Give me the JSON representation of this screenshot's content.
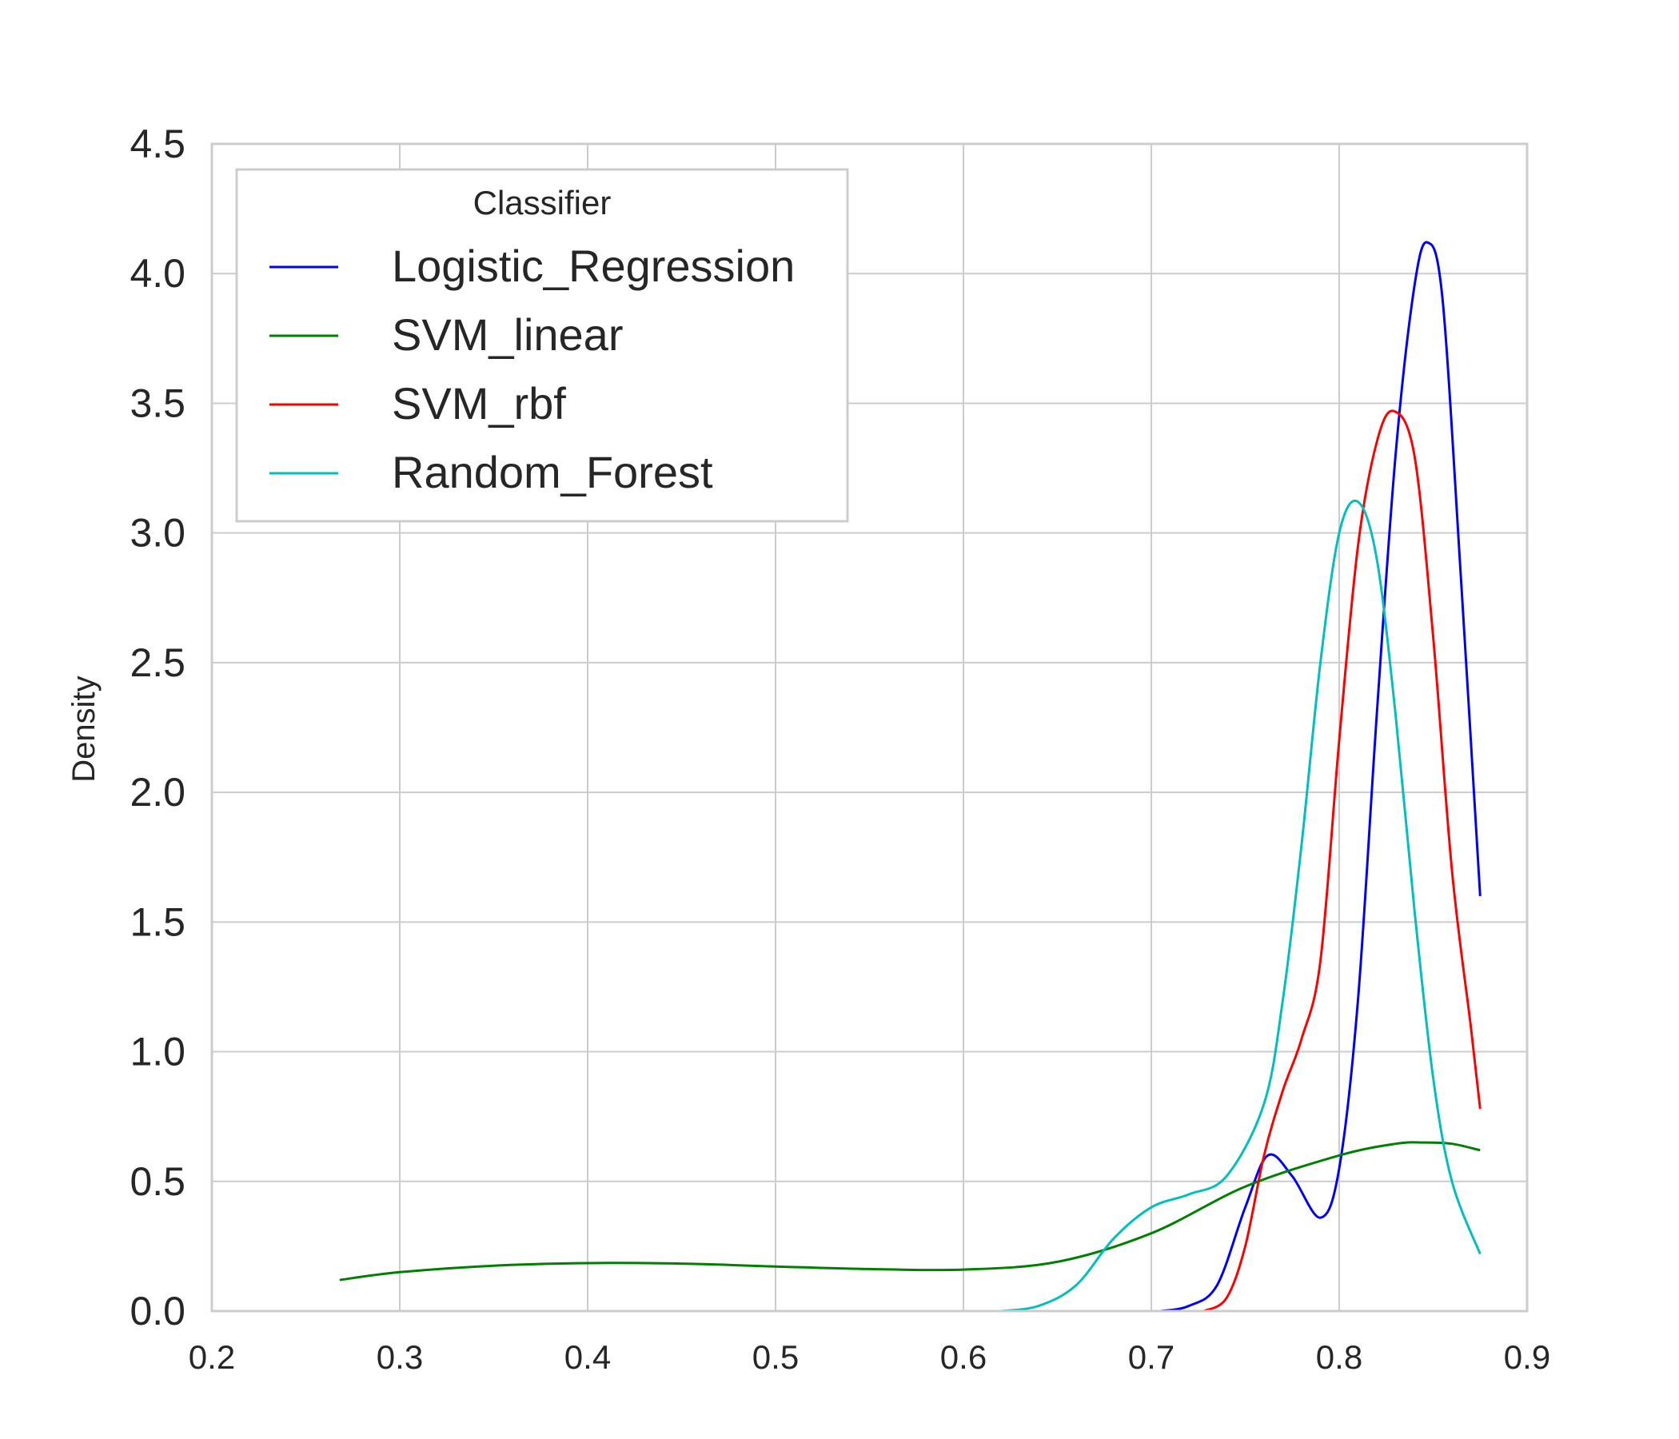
{
  "chart_data": {
    "type": "line",
    "title": "",
    "xlabel": "",
    "ylabel": "Density",
    "xlim": [
      0.2,
      0.9
    ],
    "ylim": [
      0.0,
      4.5
    ],
    "x_ticks": [
      "0.2",
      "0.3",
      "0.4",
      "0.5",
      "0.6",
      "0.7",
      "0.8",
      "0.9"
    ],
    "y_ticks": [
      "0.0",
      "0.5",
      "1.0",
      "1.5",
      "2.0",
      "2.5",
      "3.0",
      "3.5",
      "4.0",
      "4.5"
    ],
    "grid": true,
    "legend": {
      "title": "Classifier",
      "position": "top-left"
    },
    "series": [
      {
        "name": "Logistic_Regression",
        "color": "#0000ff",
        "points": [
          [
            0.705,
            0.0
          ],
          [
            0.72,
            0.02
          ],
          [
            0.735,
            0.1
          ],
          [
            0.75,
            0.4
          ],
          [
            0.762,
            0.6
          ],
          [
            0.775,
            0.52
          ],
          [
            0.79,
            0.36
          ],
          [
            0.8,
            0.55
          ],
          [
            0.81,
            1.2
          ],
          [
            0.82,
            2.3
          ],
          [
            0.83,
            3.3
          ],
          [
            0.84,
            3.95
          ],
          [
            0.847,
            4.12
          ],
          [
            0.855,
            3.9
          ],
          [
            0.865,
            2.8
          ],
          [
            0.875,
            1.6
          ]
        ]
      },
      {
        "name": "SVM_linear",
        "color": "#008000",
        "points": [
          [
            0.268,
            0.12
          ],
          [
            0.3,
            0.15
          ],
          [
            0.35,
            0.175
          ],
          [
            0.4,
            0.185
          ],
          [
            0.45,
            0.183
          ],
          [
            0.5,
            0.172
          ],
          [
            0.55,
            0.162
          ],
          [
            0.6,
            0.16
          ],
          [
            0.65,
            0.19
          ],
          [
            0.7,
            0.3
          ],
          [
            0.75,
            0.48
          ],
          [
            0.8,
            0.6
          ],
          [
            0.83,
            0.645
          ],
          [
            0.845,
            0.65
          ],
          [
            0.86,
            0.645
          ],
          [
            0.875,
            0.62
          ]
        ]
      },
      {
        "name": "SVM_rbf",
        "color": "#ff0000",
        "points": [
          [
            0.728,
            0.0
          ],
          [
            0.74,
            0.05
          ],
          [
            0.75,
            0.25
          ],
          [
            0.76,
            0.6
          ],
          [
            0.77,
            0.85
          ],
          [
            0.78,
            1.05
          ],
          [
            0.79,
            1.35
          ],
          [
            0.8,
            2.2
          ],
          [
            0.81,
            2.95
          ],
          [
            0.82,
            3.35
          ],
          [
            0.829,
            3.47
          ],
          [
            0.84,
            3.3
          ],
          [
            0.85,
            2.6
          ],
          [
            0.86,
            1.7
          ],
          [
            0.87,
            1.1
          ],
          [
            0.875,
            0.78
          ]
        ]
      },
      {
        "name": "Random_Forest",
        "color": "#00bfbf",
        "points": [
          [
            0.62,
            0.0
          ],
          [
            0.64,
            0.02
          ],
          [
            0.66,
            0.1
          ],
          [
            0.68,
            0.28
          ],
          [
            0.7,
            0.4
          ],
          [
            0.72,
            0.45
          ],
          [
            0.74,
            0.52
          ],
          [
            0.76,
            0.8
          ],
          [
            0.77,
            1.2
          ],
          [
            0.78,
            1.8
          ],
          [
            0.79,
            2.5
          ],
          [
            0.8,
            3.0
          ],
          [
            0.81,
            3.12
          ],
          [
            0.82,
            2.9
          ],
          [
            0.83,
            2.3
          ],
          [
            0.84,
            1.55
          ],
          [
            0.85,
            0.9
          ],
          [
            0.86,
            0.5
          ],
          [
            0.875,
            0.22
          ]
        ]
      }
    ]
  }
}
